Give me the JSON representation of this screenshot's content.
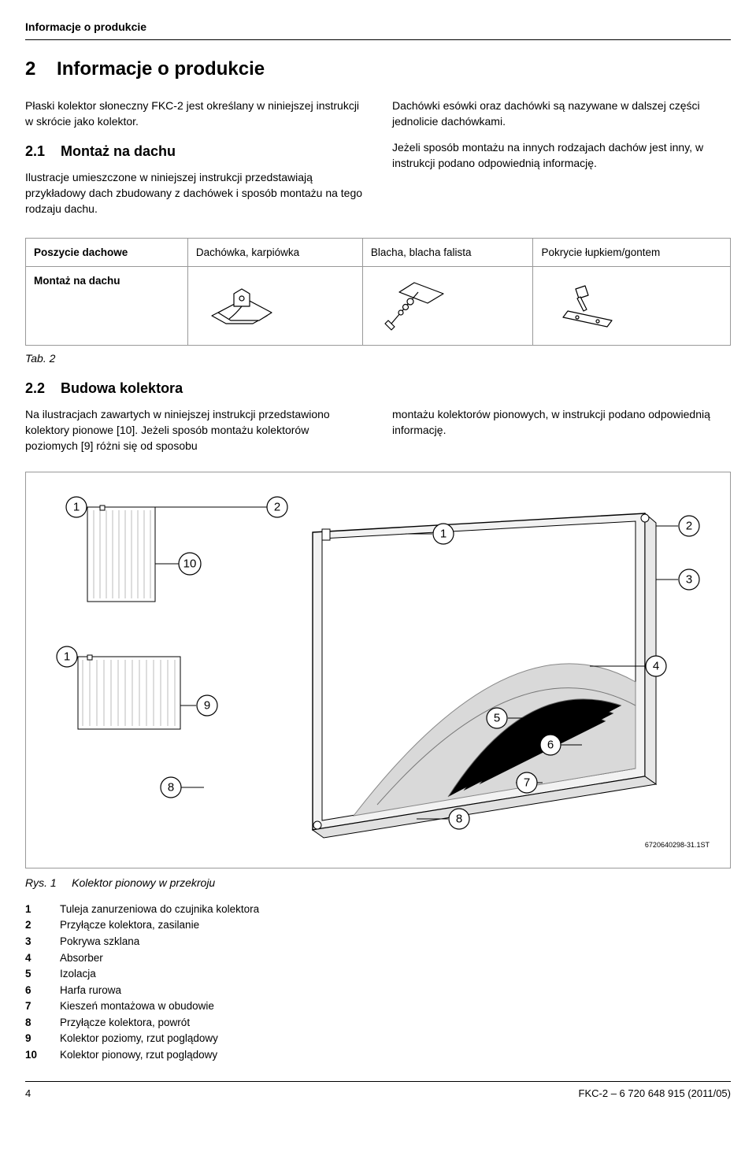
{
  "header": {
    "section": "Informacje o produkcie"
  },
  "sec2": {
    "num": "2",
    "title": "Informacje o produkcie",
    "intro": "Płaski kolektor słoneczny FKC-2 jest określany w niniejszej instrukcji w skrócie jako kolektor.",
    "s21": {
      "num": "2.1",
      "title": "Montaż na dachu",
      "p1": "Ilustracje umieszczone w niniejszej instrukcji przedstawiają przykładowy dach zbudowany z dachówek i sposób montażu na tego rodzaju dachu.",
      "p2": "Dachówki esówki oraz dachówki są nazywane w dalszej części jednolicie dachówkami.",
      "p3": "Jeżeli sposób montażu na innych rodzajach dachów jest inny, w instrukcji podano odpowiednią informację."
    }
  },
  "table2": {
    "row1c1": "Poszycie dachowe",
    "row1c2": "Dachówka, karpiówka",
    "row1c3": "Blacha, blacha falista",
    "row1c4": "Pokrycie łupkiem/gontem",
    "row2c1": "Montaż na dachu",
    "caption": "Tab. 2"
  },
  "s22": {
    "num": "2.2",
    "title": "Budowa kolektora",
    "p1": "Na ilustracjach zawartych w niniejszej instrukcji przedstawiono kolektory pionowe [10]. Jeżeli sposób montażu kolektorów poziomych [9] różni się od sposobu",
    "p2": "montażu kolektorów pionowych, w instrukcji podano odpowiednią informację."
  },
  "fig1": {
    "caption_label": "Rys. 1",
    "caption_text": "Kolektor pionowy w przekroju",
    "id": "6720640298-31.1ST",
    "callouts": {
      "c1a": "1",
      "c2a": "2",
      "c1b": "1",
      "c2b": "2",
      "c3": "3",
      "c4": "4",
      "c5": "5",
      "c6": "6",
      "c7": "7",
      "c8a": "8",
      "c8b": "8",
      "c9": "9",
      "c10": "10",
      "c1c": "1"
    },
    "legend": [
      {
        "n": "1",
        "t": "Tuleja zanurzeniowa do czujnika kolektora"
      },
      {
        "n": "2",
        "t": "Przyłącze kolektora, zasilanie"
      },
      {
        "n": "3",
        "t": "Pokrywa szklana"
      },
      {
        "n": "4",
        "t": "Absorber"
      },
      {
        "n": "5",
        "t": "Izolacja"
      },
      {
        "n": "6",
        "t": "Harfa rurowa"
      },
      {
        "n": "7",
        "t": "Kieszeń montażowa w obudowie"
      },
      {
        "n": "8",
        "t": "Przyłącze kolektora, powrót"
      },
      {
        "n": "9",
        "t": "Kolektor poziomy, rzut poglądowy"
      },
      {
        "n": "10",
        "t": "Kolektor pionowy, rzut poglądowy"
      }
    ]
  },
  "footer": {
    "page": "4",
    "doc": "FKC-2 – 6 720 648 915 (2011/05)"
  },
  "styles": {
    "accent": "#000000",
    "border": "#999999",
    "panel_fill": "#f2f2f2",
    "cutaway_fill": "#d9d9d9"
  }
}
